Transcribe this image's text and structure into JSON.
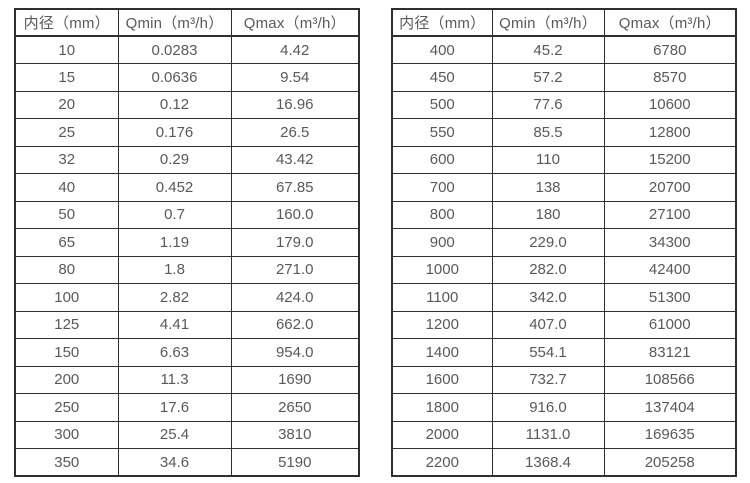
{
  "page": {
    "background_color": "#ffffff",
    "border_color": "#2f2f2f",
    "text_color": "#595959"
  },
  "tables": [
    {
      "name": "flow-table-small-diameter",
      "headers": [
        "内径（mm）",
        "Qmin（m³/h）",
        "Qmax（m³/h）"
      ],
      "rows": [
        [
          "10",
          "0.0283",
          "4.42"
        ],
        [
          "15",
          "0.0636",
          "9.54"
        ],
        [
          "20",
          "0.12",
          "16.96"
        ],
        [
          "25",
          "0.176",
          "26.5"
        ],
        [
          "32",
          "0.29",
          "43.42"
        ],
        [
          "40",
          "0.452",
          "67.85"
        ],
        [
          "50",
          "0.7",
          "160.0"
        ],
        [
          "65",
          "1.19",
          "179.0"
        ],
        [
          "80",
          "1.8",
          "271.0"
        ],
        [
          "100",
          "2.82",
          "424.0"
        ],
        [
          "125",
          "4.41",
          "662.0"
        ],
        [
          "150",
          "6.63",
          "954.0"
        ],
        [
          "200",
          "11.3",
          "1690"
        ],
        [
          "250",
          "17.6",
          "2650"
        ],
        [
          "300",
          "25.4",
          "3810"
        ],
        [
          "350",
          "34.6",
          "5190"
        ]
      ]
    },
    {
      "name": "flow-table-large-diameter",
      "headers": [
        "内径（mm）",
        "Qmin（m³/h）",
        "Qmax（m³/h）"
      ],
      "rows": [
        [
          "400",
          "45.2",
          "6780"
        ],
        [
          "450",
          "57.2",
          "8570"
        ],
        [
          "500",
          "77.6",
          "10600"
        ],
        [
          "550",
          "85.5",
          "12800"
        ],
        [
          "600",
          "110",
          "15200"
        ],
        [
          "700",
          "138",
          "20700"
        ],
        [
          "800",
          "180",
          "27100"
        ],
        [
          "900",
          "229.0",
          "34300"
        ],
        [
          "1000",
          "282.0",
          "42400"
        ],
        [
          "1100",
          "342.0",
          "51300"
        ],
        [
          "1200",
          "407.0",
          "61000"
        ],
        [
          "1400",
          "554.1",
          "83121"
        ],
        [
          "1600",
          "732.7",
          "108566"
        ],
        [
          "1800",
          "916.0",
          "137404"
        ],
        [
          "2000",
          "1131.0",
          "169635"
        ],
        [
          "2200",
          "1368.4",
          "205258"
        ]
      ]
    }
  ]
}
